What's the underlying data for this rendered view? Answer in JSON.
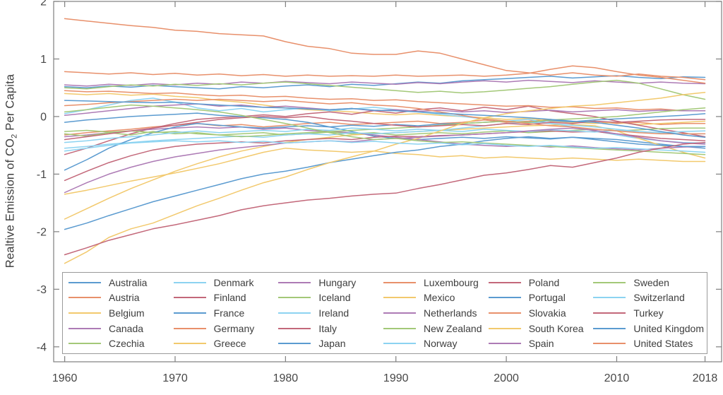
{
  "figure": {
    "ylabel": {
      "prefix": "Realtive Emission of CO",
      "sub": "2",
      "suffix": " Per Capita"
    }
  },
  "style": {
    "axis_color": "#7f7f7f",
    "tick_label_color": "#474747",
    "legend_border_color": "#9a9a9a",
    "background": "#ffffff",
    "line_width": 1.5
  },
  "chart_data": {
    "type": "line",
    "title": "",
    "xlabel": "",
    "ylabel": "Realtive Emission of CO2 Per Capita",
    "xlim": [
      1959,
      2019.5
    ],
    "ylim": [
      -4.26,
      2.0
    ],
    "xticks": [
      1960,
      1970,
      1980,
      1990,
      2000,
      2010,
      2018
    ],
    "yticks": [
      2,
      1,
      0,
      -1,
      -2,
      -3,
      -4
    ],
    "grid": false,
    "legend_position": "inside-bottom",
    "legend_columns": 6,
    "legend_fill": "column-major",
    "palette": [
      "#5b9bd0",
      "#e8906b",
      "#f2c96d",
      "#ad7bb5",
      "#a3c878",
      "#8cd3f1",
      "#c3687a"
    ],
    "x": [
      1960,
      1962,
      1964,
      1966,
      1968,
      1970,
      1972,
      1974,
      1976,
      1978,
      1980,
      1982,
      1984,
      1986,
      1988,
      1990,
      1992,
      1994,
      1996,
      1998,
      2000,
      2002,
      2004,
      2006,
      2008,
      2010,
      2012,
      2014,
      2016,
      2018
    ],
    "series": [
      {
        "name": "Australia",
        "color_index": 0,
        "values": [
          0.52,
          0.5,
          0.53,
          0.51,
          0.54,
          0.52,
          0.5,
          0.48,
          0.52,
          0.5,
          0.53,
          0.55,
          0.52,
          0.56,
          0.54,
          0.57,
          0.6,
          0.58,
          0.62,
          0.64,
          0.66,
          0.68,
          0.7,
          0.67,
          0.69,
          0.71,
          0.68,
          0.66,
          0.69,
          0.68
        ]
      },
      {
        "name": "Austria",
        "color_index": 1,
        "values": [
          -0.32,
          -0.28,
          -0.25,
          -0.22,
          -0.18,
          -0.15,
          -0.12,
          -0.16,
          -0.14,
          -0.18,
          -0.15,
          -0.12,
          -0.1,
          -0.14,
          -0.12,
          -0.1,
          -0.08,
          -0.12,
          -0.1,
          -0.06,
          -0.1,
          -0.08,
          -0.05,
          -0.1,
          -0.08,
          -0.12,
          -0.1,
          -0.14,
          -0.12,
          -0.12
        ]
      },
      {
        "name": "Belgium",
        "color_index": 2,
        "values": [
          0.4,
          0.38,
          0.4,
          0.37,
          0.39,
          0.35,
          0.33,
          0.28,
          0.25,
          0.2,
          0.15,
          0.12,
          0.1,
          0.08,
          0.05,
          0.03,
          0.05,
          0.02,
          0.0,
          -0.02,
          -0.05,
          -0.03,
          -0.08,
          -0.1,
          -0.12,
          -0.1,
          -0.14,
          -0.12,
          -0.1,
          -0.08
        ]
      },
      {
        "name": "Canada",
        "color_index": 3,
        "values": [
          0.55,
          0.53,
          0.56,
          0.54,
          0.57,
          0.55,
          0.58,
          0.56,
          0.6,
          0.58,
          0.61,
          0.59,
          0.57,
          0.6,
          0.58,
          0.56,
          0.59,
          0.57,
          0.6,
          0.62,
          0.6,
          0.63,
          0.61,
          0.59,
          0.62,
          0.6,
          0.58,
          0.6,
          0.58,
          0.57
        ]
      },
      {
        "name": "Czechia",
        "color_index": 4,
        "values": [
          0.5,
          0.48,
          0.52,
          0.55,
          0.53,
          0.56,
          0.54,
          0.57,
          0.55,
          0.58,
          0.6,
          0.57,
          0.54,
          0.51,
          0.48,
          0.45,
          0.42,
          0.44,
          0.41,
          0.43,
          0.46,
          0.49,
          0.52,
          0.56,
          0.6,
          0.63,
          0.58,
          0.48,
          0.38,
          0.3
        ]
      },
      {
        "name": "Denmark",
        "color_index": 5,
        "values": [
          0.05,
          0.12,
          0.2,
          0.28,
          0.32,
          0.25,
          0.15,
          0.1,
          0.14,
          0.08,
          0.12,
          0.15,
          0.1,
          0.13,
          0.16,
          0.12,
          0.08,
          0.04,
          0.0,
          -0.04,
          -0.08,
          -0.05,
          -0.12,
          -0.18,
          -0.25,
          -0.32,
          -0.38,
          -0.42,
          -0.45,
          -0.46
        ]
      },
      {
        "name": "Finland",
        "color_index": 6,
        "values": [
          -0.66,
          -0.55,
          -0.42,
          -0.3,
          -0.2,
          -0.12,
          -0.05,
          -0.02,
          0.0,
          0.03,
          0.0,
          0.05,
          0.08,
          0.04,
          0.1,
          0.06,
          0.12,
          0.15,
          0.1,
          0.16,
          0.12,
          0.18,
          0.1,
          0.05,
          0.0,
          -0.08,
          -0.15,
          -0.22,
          -0.28,
          -0.35
        ]
      },
      {
        "name": "France",
        "color_index": 0,
        "values": [
          -0.1,
          -0.06,
          -0.03,
          0.0,
          0.02,
          0.04,
          0.06,
          0.02,
          0.0,
          -0.02,
          -0.05,
          -0.1,
          -0.18,
          -0.26,
          -0.34,
          -0.38,
          -0.4,
          -0.38,
          -0.36,
          -0.38,
          -0.35,
          -0.37,
          -0.39,
          -0.36,
          -0.38,
          -0.4,
          -0.44,
          -0.48,
          -0.52,
          -0.55
        ]
      },
      {
        "name": "Germany",
        "color_index": 1,
        "values": [
          0.45,
          0.43,
          0.44,
          0.42,
          0.4,
          0.41,
          0.38,
          0.36,
          0.37,
          0.34,
          0.35,
          0.32,
          0.3,
          0.31,
          0.28,
          0.29,
          0.26,
          0.24,
          0.22,
          0.2,
          0.18,
          0.19,
          0.16,
          0.17,
          0.14,
          0.15,
          0.12,
          0.13,
          0.1,
          0.1
        ]
      },
      {
        "name": "Greece",
        "color_index": 2,
        "values": [
          -1.78,
          -1.6,
          -1.42,
          -1.25,
          -1.1,
          -0.95,
          -0.82,
          -0.7,
          -0.6,
          -0.52,
          -0.45,
          -0.4,
          -0.36,
          -0.32,
          -0.3,
          -0.28,
          -0.26,
          -0.24,
          -0.22,
          -0.2,
          -0.18,
          -0.16,
          -0.15,
          -0.14,
          -0.16,
          -0.25,
          -0.38,
          -0.5,
          -0.62,
          -0.72
        ]
      },
      {
        "name": "Hungary",
        "color_index": 3,
        "values": [
          -0.35,
          -0.32,
          -0.28,
          -0.25,
          -0.22,
          -0.2,
          -0.18,
          -0.2,
          -0.18,
          -0.22,
          -0.2,
          -0.24,
          -0.26,
          -0.28,
          -0.32,
          -0.36,
          -0.4,
          -0.44,
          -0.48,
          -0.5,
          -0.52,
          -0.5,
          -0.53,
          -0.51,
          -0.54,
          -0.56,
          -0.58,
          -0.55,
          -0.53,
          -0.52
        ]
      },
      {
        "name": "Iceland",
        "color_index": 4,
        "values": [
          -0.3,
          -0.34,
          -0.28,
          -0.32,
          -0.26,
          -0.3,
          -0.28,
          -0.32,
          -0.3,
          -0.28,
          -0.32,
          -0.3,
          -0.27,
          -0.3,
          -0.28,
          -0.32,
          -0.3,
          -0.28,
          -0.3,
          -0.27,
          -0.25,
          -0.28,
          -0.26,
          -0.24,
          -0.22,
          -0.25,
          -0.23,
          -0.21,
          -0.2,
          -0.2
        ]
      },
      {
        "name": "Ireland",
        "color_index": 5,
        "values": [
          -0.55,
          -0.52,
          -0.48,
          -0.45,
          -0.42,
          -0.4,
          -0.38,
          -0.36,
          -0.34,
          -0.36,
          -0.32,
          -0.3,
          -0.32,
          -0.28,
          -0.3,
          -0.28,
          -0.26,
          -0.24,
          -0.2,
          -0.16,
          -0.12,
          -0.1,
          -0.12,
          -0.15,
          -0.18,
          -0.22,
          -0.26,
          -0.28,
          -0.3,
          -0.3
        ]
      },
      {
        "name": "Italy",
        "color_index": 6,
        "values": [
          -1.11,
          -0.95,
          -0.8,
          -0.68,
          -0.58,
          -0.52,
          -0.48,
          -0.46,
          -0.44,
          -0.46,
          -0.42,
          -0.4,
          -0.38,
          -0.4,
          -0.36,
          -0.34,
          -0.35,
          -0.33,
          -0.32,
          -0.3,
          -0.28,
          -0.26,
          -0.25,
          -0.27,
          -0.26,
          -0.3,
          -0.34,
          -0.38,
          -0.4,
          -0.42
        ]
      },
      {
        "name": "Japan",
        "color_index": 0,
        "values": [
          -0.93,
          -0.75,
          -0.55,
          -0.4,
          -0.28,
          -0.18,
          -0.12,
          -0.15,
          -0.18,
          -0.2,
          -0.18,
          -0.16,
          -0.18,
          -0.15,
          -0.17,
          -0.14,
          -0.16,
          -0.13,
          -0.12,
          -0.1,
          -0.08,
          -0.1,
          -0.07,
          -0.09,
          -0.06,
          -0.04,
          -0.02,
          0.0,
          0.02,
          0.05
        ]
      },
      {
        "name": "Luxembourg",
        "color_index": 1,
        "values": [
          0.78,
          0.76,
          0.74,
          0.76,
          0.73,
          0.75,
          0.72,
          0.74,
          0.71,
          0.73,
          0.7,
          0.72,
          0.7,
          0.71,
          0.7,
          0.72,
          0.7,
          0.71,
          0.72,
          0.7,
          0.72,
          0.75,
          0.82,
          0.88,
          0.85,
          0.78,
          0.72,
          0.68,
          0.63,
          0.58
        ]
      },
      {
        "name": "Mexico",
        "color_index": 2,
        "values": [
          -1.35,
          -1.28,
          -1.2,
          -1.12,
          -1.05,
          -0.98,
          -0.9,
          -0.82,
          -0.72,
          -0.62,
          -0.55,
          -0.58,
          -0.6,
          -0.62,
          -0.6,
          -0.64,
          -0.66,
          -0.7,
          -0.68,
          -0.72,
          -0.7,
          -0.72,
          -0.74,
          -0.72,
          -0.74,
          -0.76,
          -0.74,
          -0.76,
          -0.78,
          -0.78
        ]
      },
      {
        "name": "Netherlands",
        "color_index": 3,
        "values": [
          0.02,
          0.06,
          0.1,
          0.14,
          0.18,
          0.2,
          0.22,
          0.18,
          0.2,
          0.16,
          0.18,
          0.15,
          0.12,
          0.14,
          0.1,
          0.12,
          0.09,
          0.11,
          0.08,
          0.1,
          0.07,
          0.09,
          0.11,
          0.08,
          0.1,
          0.12,
          0.09,
          0.11,
          0.1,
          0.1
        ]
      },
      {
        "name": "New Zealand",
        "color_index": 4,
        "values": [
          -0.26,
          -0.24,
          -0.27,
          -0.25,
          -0.28,
          -0.26,
          -0.3,
          -0.32,
          -0.35,
          -0.33,
          -0.3,
          -0.28,
          -0.26,
          -0.24,
          -0.22,
          -0.2,
          -0.18,
          -0.15,
          -0.12,
          -0.1,
          -0.08,
          -0.1,
          -0.06,
          -0.04,
          -0.02,
          0.0,
          0.04,
          0.08,
          0.12,
          0.15
        ]
      },
      {
        "name": "Norway",
        "color_index": 5,
        "values": [
          -0.45,
          -0.42,
          -0.38,
          -0.35,
          -0.32,
          -0.28,
          -0.25,
          -0.28,
          -0.26,
          -0.24,
          -0.26,
          -0.22,
          -0.24,
          -0.2,
          -0.22,
          -0.25,
          -0.22,
          -0.24,
          -0.26,
          -0.22,
          -0.24,
          -0.26,
          -0.23,
          -0.25,
          -0.27,
          -0.24,
          -0.26,
          -0.28,
          -0.26,
          -0.25
        ]
      },
      {
        "name": "Poland",
        "color_index": 6,
        "values": [
          -0.4,
          -0.35,
          -0.3,
          -0.25,
          -0.2,
          -0.15,
          -0.1,
          -0.05,
          -0.02,
          0.0,
          -0.02,
          0.0,
          -0.05,
          -0.08,
          -0.12,
          -0.15,
          -0.18,
          -0.16,
          -0.14,
          -0.16,
          -0.12,
          -0.14,
          -0.1,
          -0.12,
          -0.08,
          -0.1,
          -0.08,
          -0.06,
          -0.05,
          -0.05
        ]
      },
      {
        "name": "Portugal",
        "color_index": 0,
        "values": [
          -1.96,
          -1.85,
          -1.72,
          -1.6,
          -1.48,
          -1.38,
          -1.28,
          -1.18,
          -1.08,
          -1.0,
          -0.95,
          -0.88,
          -0.8,
          -0.74,
          -0.68,
          -0.62,
          -0.58,
          -0.52,
          -0.48,
          -0.42,
          -0.38,
          -0.35,
          -0.38,
          -0.36,
          -0.4,
          -0.44,
          -0.48,
          -0.5,
          -0.52,
          -0.52
        ]
      },
      {
        "name": "Slovakia",
        "color_index": 1,
        "values": [
          0.19,
          0.21,
          0.24,
          0.26,
          0.28,
          0.3,
          0.28,
          0.3,
          0.28,
          0.26,
          0.28,
          0.25,
          0.22,
          0.24,
          0.2,
          0.18,
          0.14,
          0.08,
          0.02,
          -0.04,
          -0.08,
          -0.12,
          -0.16,
          -0.18,
          -0.22,
          -0.25,
          -0.28,
          -0.3,
          -0.3,
          -0.3
        ]
      },
      {
        "name": "South Korea",
        "color_index": 2,
        "values": [
          -2.55,
          -2.35,
          -2.1,
          -1.95,
          -1.85,
          -1.7,
          -1.55,
          -1.42,
          -1.28,
          -1.15,
          -1.05,
          -0.92,
          -0.8,
          -0.7,
          -0.6,
          -0.48,
          -0.38,
          -0.25,
          -0.12,
          -0.02,
          0.05,
          0.1,
          0.14,
          0.18,
          0.2,
          0.24,
          0.28,
          0.32,
          0.38,
          0.42
        ]
      },
      {
        "name": "Spain",
        "color_index": 3,
        "values": [
          -1.32,
          -1.15,
          -1.0,
          -0.88,
          -0.78,
          -0.7,
          -0.64,
          -0.58,
          -0.54,
          -0.5,
          -0.46,
          -0.44,
          -0.42,
          -0.44,
          -0.4,
          -0.38,
          -0.36,
          -0.34,
          -0.32,
          -0.3,
          -0.28,
          -0.25,
          -0.22,
          -0.2,
          -0.24,
          -0.3,
          -0.36,
          -0.42,
          -0.46,
          -0.48
        ]
      },
      {
        "name": "Sweden",
        "color_index": 4,
        "values": [
          0.08,
          0.12,
          0.16,
          0.2,
          0.18,
          0.15,
          0.12,
          0.08,
          0.02,
          -0.05,
          -0.12,
          -0.2,
          -0.28,
          -0.35,
          -0.4,
          -0.38,
          -0.42,
          -0.45,
          -0.44,
          -0.46,
          -0.48,
          -0.5,
          -0.52,
          -0.54,
          -0.56,
          -0.58,
          -0.6,
          -0.62,
          -0.64,
          -0.66
        ]
      },
      {
        "name": "Switzerland",
        "color_index": 5,
        "values": [
          -0.6,
          -0.55,
          -0.5,
          -0.46,
          -0.44,
          -0.42,
          -0.44,
          -0.42,
          -0.45,
          -0.43,
          -0.46,
          -0.44,
          -0.42,
          -0.45,
          -0.43,
          -0.46,
          -0.48,
          -0.46,
          -0.49,
          -0.47,
          -0.5,
          -0.52,
          -0.5,
          -0.53,
          -0.55,
          -0.54,
          -0.56,
          -0.58,
          -0.6,
          -0.62
        ]
      },
      {
        "name": "Turkey",
        "color_index": 6,
        "values": [
          -2.4,
          -2.28,
          -2.15,
          -2.05,
          -1.95,
          -1.88,
          -1.8,
          -1.72,
          -1.62,
          -1.55,
          -1.5,
          -1.45,
          -1.42,
          -1.38,
          -1.35,
          -1.33,
          -1.25,
          -1.18,
          -1.1,
          -1.02,
          -0.98,
          -0.92,
          -0.85,
          -0.88,
          -0.8,
          -0.72,
          -0.62,
          -0.55,
          -0.48,
          -0.45
        ]
      },
      {
        "name": "United Kingdom",
        "color_index": 0,
        "values": [
          0.28,
          0.27,
          0.26,
          0.25,
          0.24,
          0.25,
          0.22,
          0.2,
          0.18,
          0.16,
          0.15,
          0.13,
          0.12,
          0.14,
          0.11,
          0.1,
          0.08,
          0.06,
          0.04,
          0.02,
          0.0,
          -0.02,
          -0.05,
          -0.08,
          -0.1,
          -0.15,
          -0.2,
          -0.26,
          -0.32,
          -0.36
        ]
      },
      {
        "name": "United States",
        "color_index": 1,
        "values": [
          1.7,
          1.66,
          1.62,
          1.58,
          1.55,
          1.5,
          1.48,
          1.44,
          1.42,
          1.4,
          1.3,
          1.22,
          1.18,
          1.1,
          1.08,
          1.08,
          1.14,
          1.1,
          1.0,
          0.9,
          0.8,
          0.76,
          0.72,
          0.76,
          0.72,
          0.7,
          0.74,
          0.7,
          0.68,
          0.64
        ]
      }
    ]
  }
}
